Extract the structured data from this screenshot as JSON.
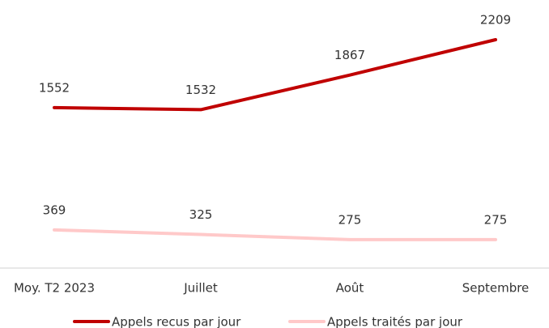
{
  "chart_data": {
    "type": "line",
    "categories": [
      "Moy. T2 2023",
      "Juillet",
      "Août",
      "Septembre"
    ],
    "series": [
      {
        "name": "Appels recus par jour",
        "color": "#c00000",
        "values": [
          1552,
          1532,
          1867,
          2209
        ]
      },
      {
        "name": "Appels traités par jour",
        "color": "#ffc9c9",
        "values": [
          369,
          325,
          275,
          275
        ]
      }
    ]
  }
}
